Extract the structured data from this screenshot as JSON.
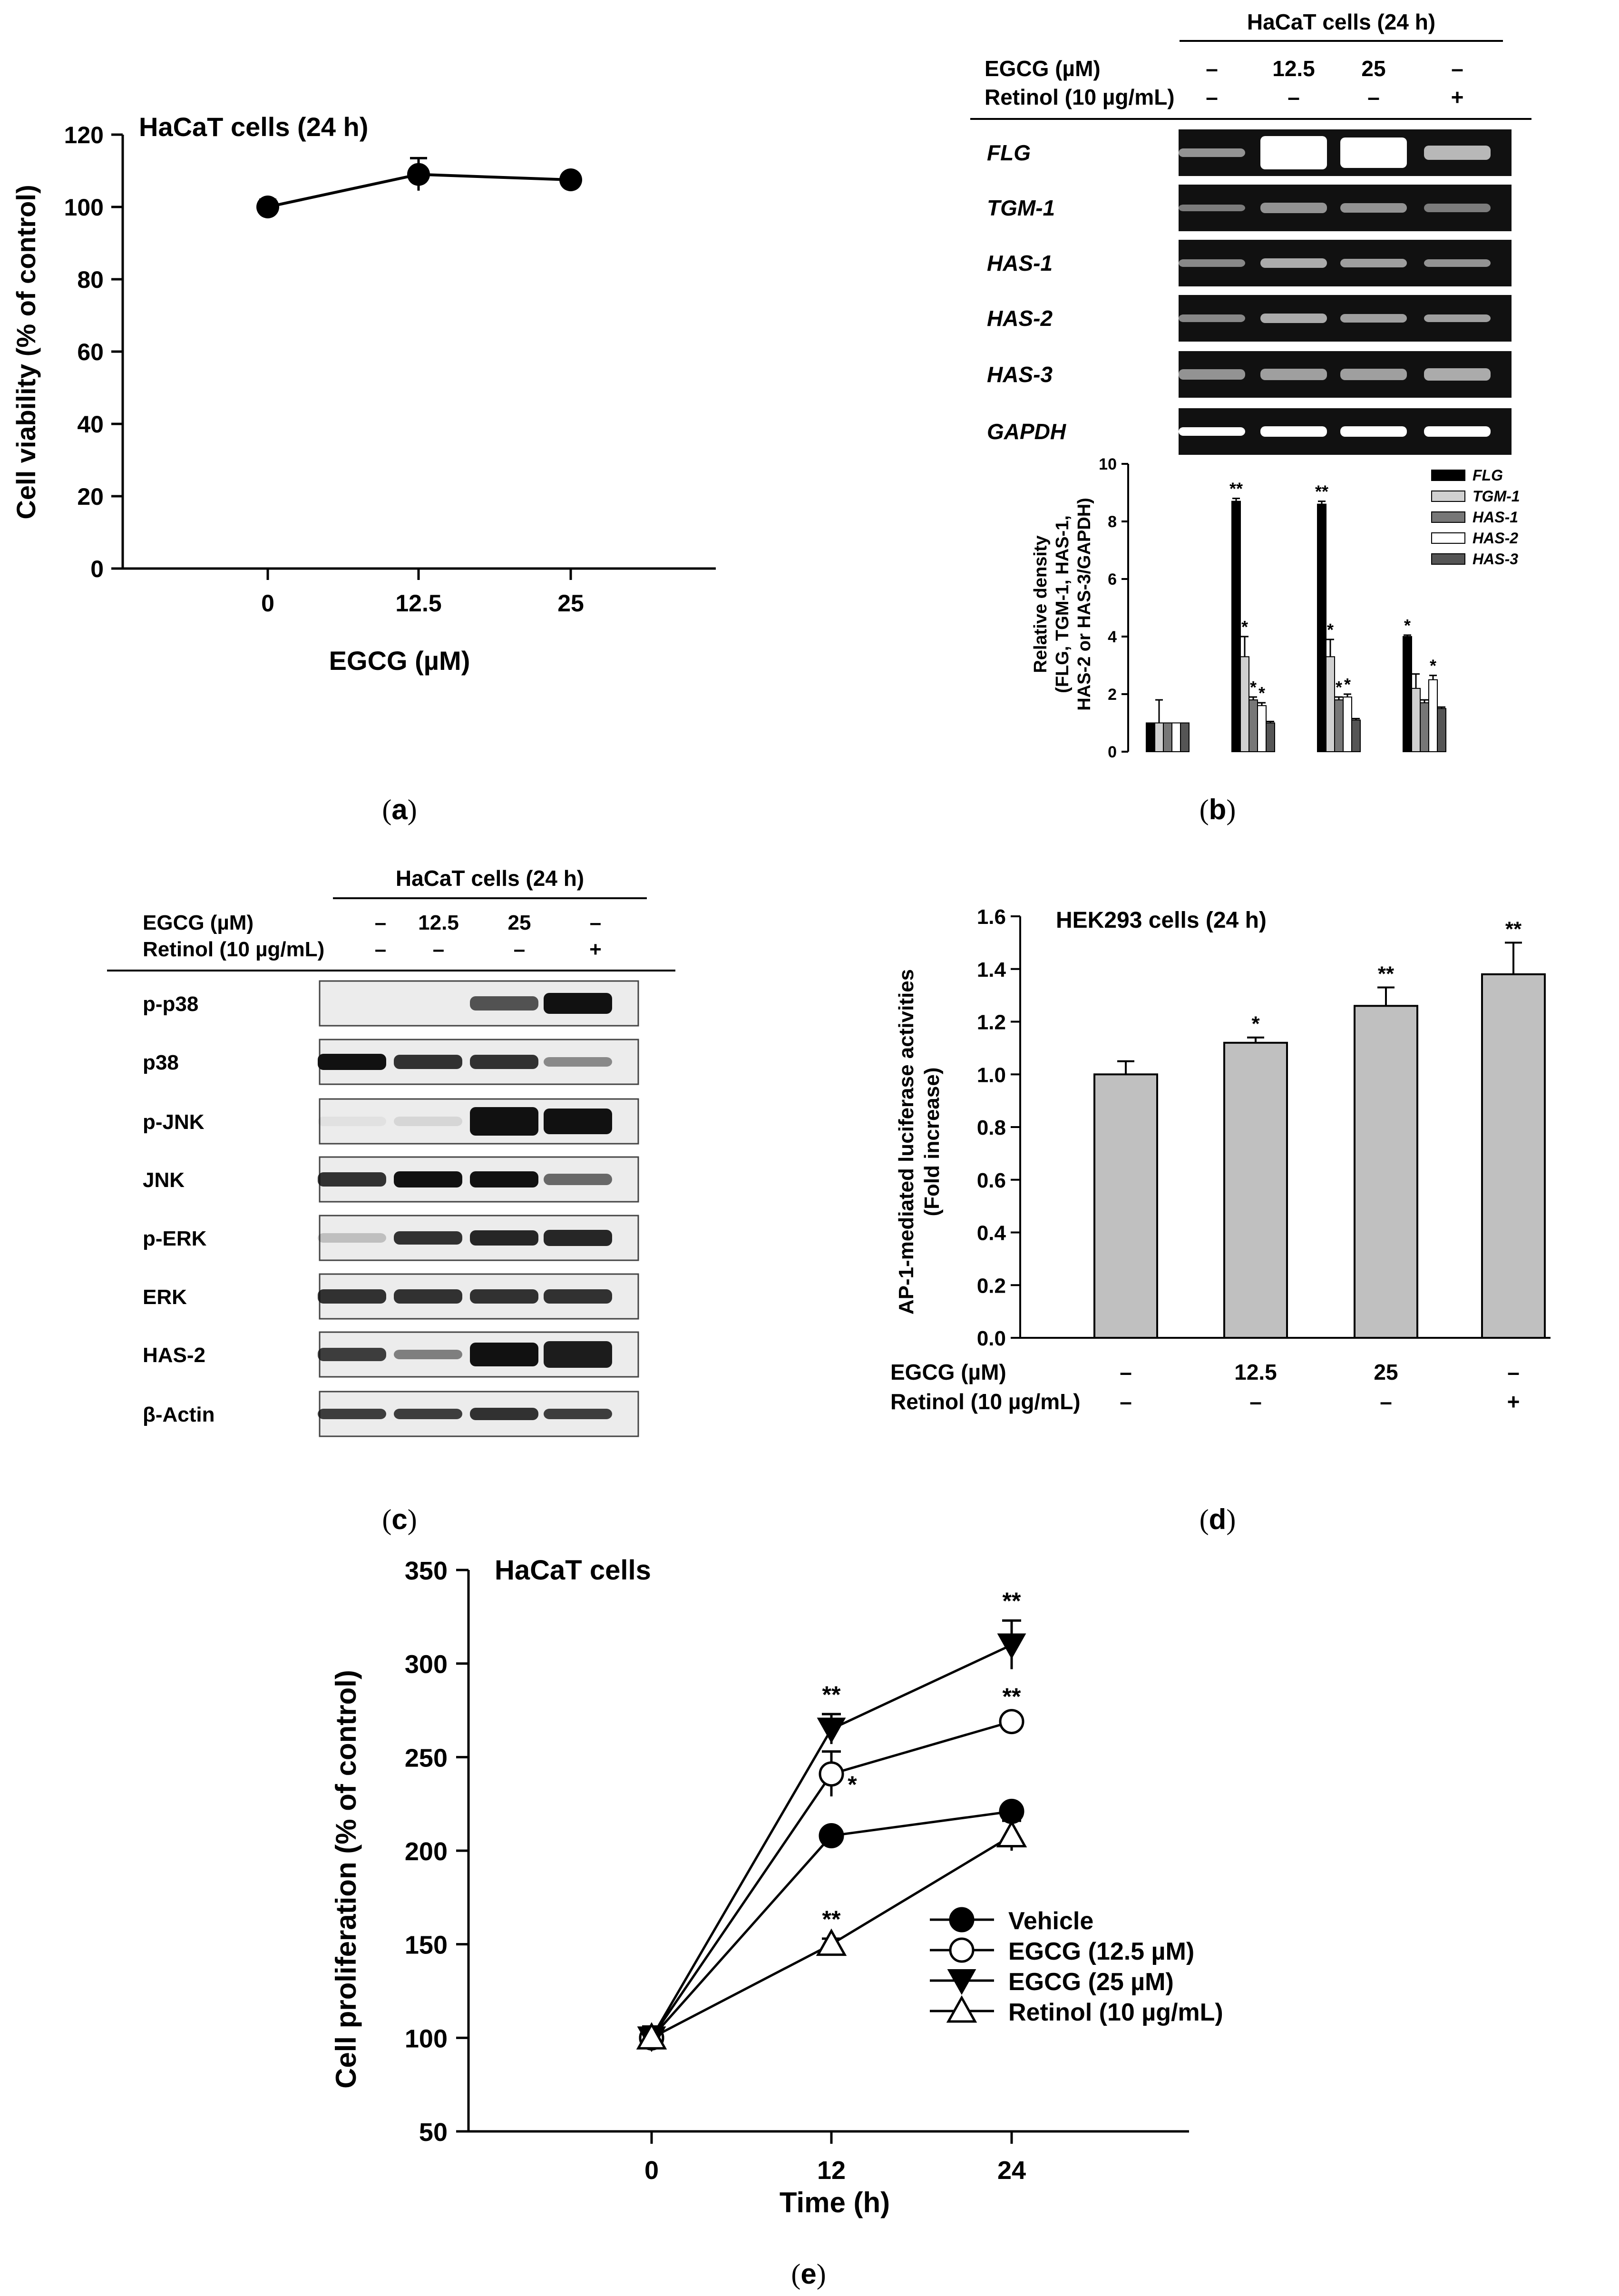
{
  "panels": {
    "a": {
      "letter": "a",
      "title": "HaCaT cells (24 h)"
    },
    "b": {
      "letter": "b",
      "title": "HaCaT cells (24 h)"
    },
    "c": {
      "letter": "c",
      "title": "HaCaT cells (24 h)"
    },
    "d": {
      "letter": "d",
      "title": "HEK293 cells (24 h)"
    },
    "e": {
      "letter": "e",
      "title": "HaCaT cells"
    }
  },
  "treatments": {
    "egcg_label": "EGCG (µM)",
    "retinol_label": "Retinol (10 µg/mL)",
    "egcg_values": [
      "–",
      "12.5",
      "25",
      "–"
    ],
    "retinol_values": [
      "–",
      "–",
      "–",
      "+"
    ]
  },
  "gel_b": {
    "bands": [
      "FLG",
      "TGM-1",
      "HAS-1",
      "HAS-2",
      "HAS-3",
      "GAPDH"
    ]
  },
  "blot_c": {
    "bands": [
      "p-p38",
      "p38",
      "p-JNK",
      "JNK",
      "p-ERK",
      "ERK",
      "HAS-2",
      "β-Actin"
    ]
  },
  "chart_data": [
    {
      "panel": "a",
      "type": "line",
      "title": "HaCaT cells (24 h)",
      "xlabel": "EGCG (µM)",
      "ylabel": "Cell viability (% of control)",
      "categories": [
        "0",
        "12.5",
        "25"
      ],
      "values": [
        100,
        109,
        107.5
      ],
      "errors": [
        2,
        4.5,
        1.5
      ],
      "ylim": [
        0,
        120
      ],
      "yticks": [
        "0",
        "20",
        "40",
        "60",
        "80",
        "100",
        "120"
      ]
    },
    {
      "panel": "b",
      "type": "bar",
      "ylabel_lines": [
        "Relative density",
        "(FLG, TGM-1, HAS-1,",
        "HAS-2 or HAS-3/GAPDH)"
      ],
      "ylim": [
        0,
        10
      ],
      "yticks": [
        "0",
        "2",
        "4",
        "6",
        "8",
        "10"
      ],
      "legend_position": "top-right",
      "groups": 4,
      "series": [
        {
          "name": "FLG",
          "values": [
            1.0,
            8.7,
            8.6,
            4.0
          ],
          "errors": [
            0,
            0.1,
            0.1,
            0.05
          ],
          "sig": [
            "",
            "**",
            "**",
            "*"
          ]
        },
        {
          "name": "TGM-1",
          "values": [
            1.0,
            3.3,
            3.3,
            2.2
          ],
          "errors": [
            0.8,
            0.7,
            0.6,
            0.5
          ],
          "sig": [
            "",
            "*",
            "*",
            ""
          ]
        },
        {
          "name": "HAS-1",
          "values": [
            1.0,
            1.8,
            1.8,
            1.7
          ],
          "errors": [
            0,
            0.1,
            0.1,
            0.1
          ],
          "sig": [
            "",
            "*",
            "*",
            ""
          ]
        },
        {
          "name": "HAS-2",
          "values": [
            1.0,
            1.6,
            1.9,
            2.5
          ],
          "errors": [
            0,
            0.1,
            0.1,
            0.15
          ],
          "sig": [
            "",
            "*",
            "*",
            "*"
          ]
        },
        {
          "name": "HAS-3",
          "values": [
            1.0,
            1.0,
            1.1,
            1.5
          ],
          "errors": [
            0,
            0.05,
            0.05,
            0.05
          ],
          "sig": [
            "",
            "",
            "",
            ""
          ]
        }
      ]
    },
    {
      "panel": "d",
      "type": "bar",
      "title": "HEK293 cells (24 h)",
      "ylabel_lines": [
        "AP-1-mediated luciferase activities",
        "(Fold increase)"
      ],
      "ylim": [
        0,
        1.6
      ],
      "yticks": [
        "0.0",
        "0.2",
        "0.4",
        "0.6",
        "0.8",
        "1.0",
        "1.2",
        "1.4",
        "1.6"
      ],
      "values": [
        1.0,
        1.12,
        1.26,
        1.38
      ],
      "errors": [
        0.05,
        0.02,
        0.07,
        0.12
      ],
      "sig": [
        "",
        "*",
        "**",
        "**"
      ]
    },
    {
      "panel": "e",
      "type": "line",
      "title": "HaCaT cells",
      "xlabel": "Time (h)",
      "ylabel": "Cell proliferation  (% of control)",
      "x": [
        "0",
        "12",
        "24"
      ],
      "ylim": [
        50,
        350
      ],
      "yticks": [
        "50",
        "100",
        "150",
        "200",
        "250",
        "300",
        "350"
      ],
      "legend_position": "lower-right",
      "series": [
        {
          "name": "Vehicle",
          "values": [
            100,
            208,
            221
          ],
          "errors": [
            6,
            3,
            3
          ],
          "sig": [
            "",
            "",
            ""
          ],
          "marker": "filled-circle"
        },
        {
          "name": "EGCG (12.5 µM)",
          "values": [
            100,
            241,
            269
          ],
          "errors": [
            6,
            12,
            3
          ],
          "sig": [
            "",
            "*",
            "**"
          ],
          "marker": "open-circle"
        },
        {
          "name": "EGCG (25 µM)",
          "values": [
            100,
            265,
            310
          ],
          "errors": [
            6,
            8,
            13
          ],
          "sig": [
            "",
            "**",
            "**"
          ],
          "marker": "filled-triangle-down"
        },
        {
          "name": "Retinol (10 µg/mL)",
          "values": [
            100,
            150,
            208
          ],
          "errors": [
            6,
            3,
            8
          ],
          "sig": [
            "",
            "**",
            ""
          ],
          "marker": "open-triangle-up"
        }
      ]
    }
  ]
}
